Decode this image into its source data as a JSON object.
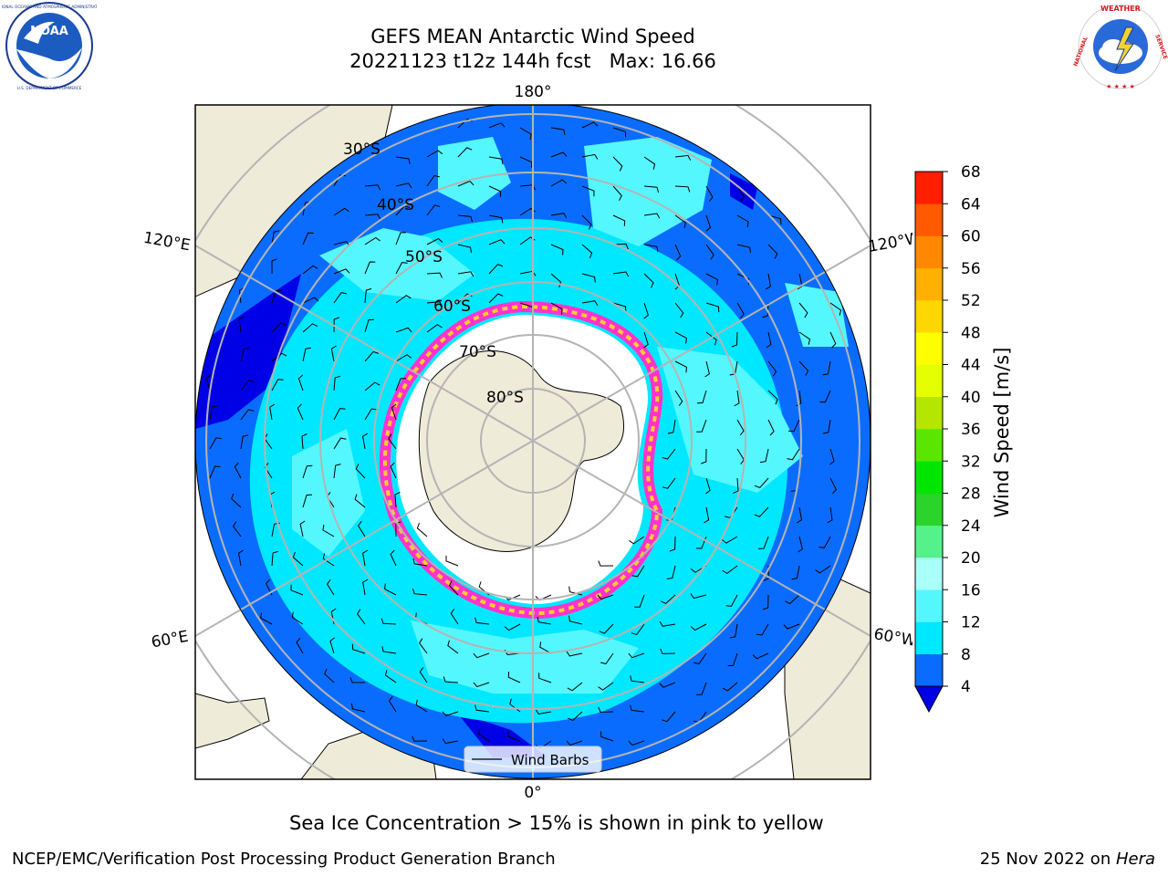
{
  "header": {
    "title_line1": "GEFS MEAN Antarctic Wind Speed",
    "title_line2": "20221123 t12z 144h fcst   Max: 16.66"
  },
  "logos": {
    "left": "NOAA",
    "left_ring_text": "NATIONAL OCEANIC AND ATMOSPHERIC ADMINISTRATION · U.S. DEPARTMENT OF COMMERCE",
    "right_ring_text": "NATIONAL WEATHER SERVICE"
  },
  "map": {
    "longitude_labels": {
      "top": "180°",
      "bottom": "0°",
      "upper_left": "120°E",
      "upper_right": "120°W",
      "lower_left": "60°E",
      "lower_right": "60°W"
    },
    "latitude_labels": [
      "30°S",
      "40°S",
      "50°S",
      "60°S",
      "70°S",
      "80°S"
    ],
    "legend_label": "Wind Barbs",
    "colors": {
      "land": "#efebd9",
      "band_4_8": "#0a6cff",
      "band_8_12": "#00e8ff",
      "band_12_16": "#55f7ff",
      "band_below_4": "#0000e6",
      "ice_edge_pink": "#ff33cc",
      "ice_edge_yellow": "#ffcc33"
    }
  },
  "colorbar": {
    "label": "Wind Speed [m/s]",
    "ticks": [
      "4",
      "8",
      "12",
      "16",
      "20",
      "24",
      "28",
      "32",
      "36",
      "40",
      "44",
      "48",
      "52",
      "56",
      "60",
      "64",
      "68"
    ],
    "colors": [
      "#0a6cff",
      "#00e8ff",
      "#55f7ff",
      "#aafff9",
      "#55f28c",
      "#2ad42a",
      "#00e600",
      "#5ae600",
      "#b4e600",
      "#e6ff00",
      "#ffff00",
      "#ffd700",
      "#ffb000",
      "#ff8800",
      "#ff5a00",
      "#ff1e00"
    ],
    "under_color": "#0000e6"
  },
  "caption": "Sea Ice Concentration > 15% is shown in pink to yellow",
  "footer": {
    "left": "NCEP/EMC/Verification Post Processing Product Generation Branch",
    "right_date": "25 Nov 2022 on ",
    "right_machine": "Hera"
  }
}
